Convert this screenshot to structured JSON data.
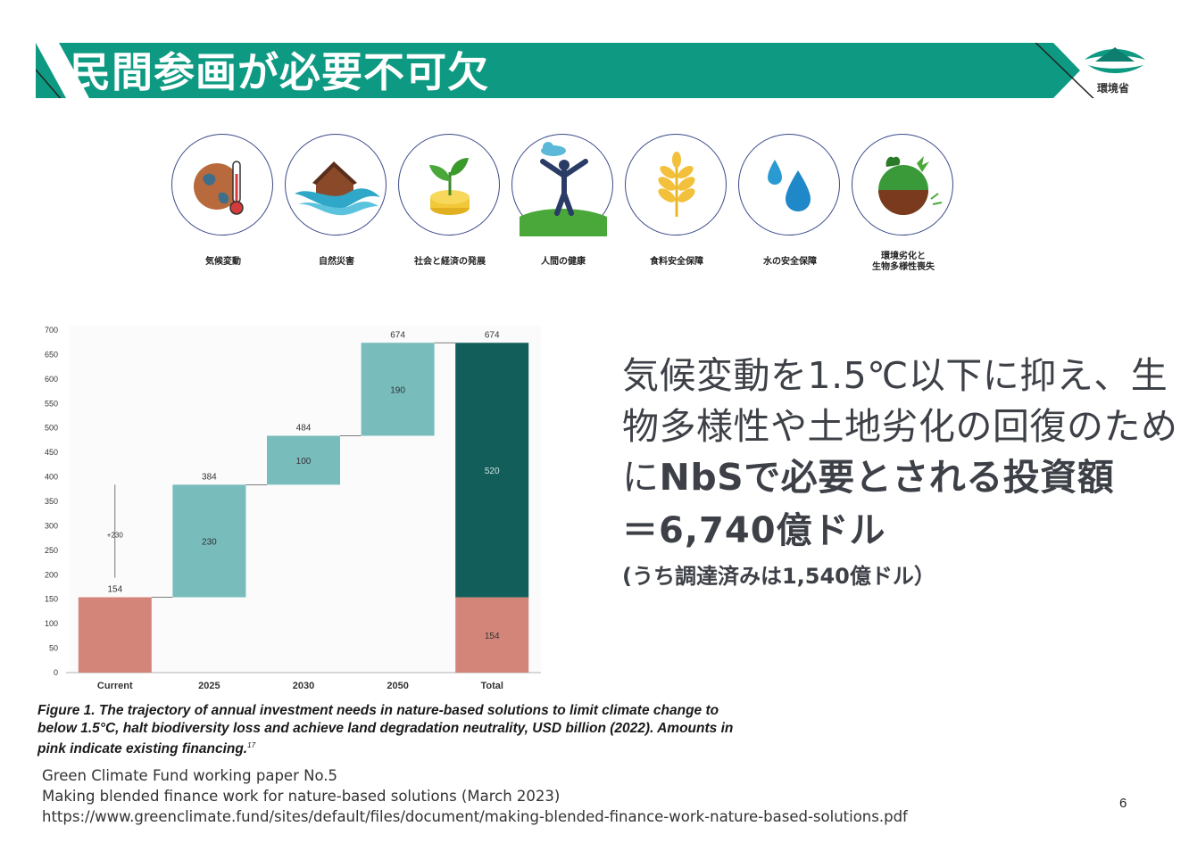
{
  "header": {
    "title": "民間参画が必要不可欠",
    "logo_label": "環境省",
    "accent": "#0e9a82"
  },
  "icons": [
    {
      "label": "気候変動",
      "icon": "globe-thermometer-icon"
    },
    {
      "label": "自然災害",
      "icon": "house-flood-icon"
    },
    {
      "label": "社会と経済の発展",
      "icon": "plant-coins-icon"
    },
    {
      "label": "人間の健康",
      "icon": "person-cloud-icon"
    },
    {
      "label": "食料安全保障",
      "icon": "wheat-icon"
    },
    {
      "label": "水の安全保障",
      "icon": "water-drops-icon"
    },
    {
      "label": "環境劣化と\n生物多様性喪失",
      "icon": "earth-soil-icon"
    }
  ],
  "chart_data": {
    "type": "bar",
    "subtype": "waterfall",
    "categories": [
      "Current",
      "2025",
      "2030",
      "2050",
      "Total"
    ],
    "steps": [
      {
        "category": "Current",
        "base": 0,
        "value": 154,
        "top_label": "154",
        "inner_label": "",
        "color": "#d4857a"
      },
      {
        "category": "2025",
        "base": 154,
        "value": 230,
        "top_label": "384",
        "inner_label": "230",
        "color": "#78bcbc"
      },
      {
        "category": "2030",
        "base": 384,
        "value": 100,
        "top_label": "484",
        "inner_label": "100",
        "color": "#78bcbc"
      },
      {
        "category": "2050",
        "base": 484,
        "value": 190,
        "top_label": "674",
        "inner_label": "190",
        "color": "#78bcbc"
      }
    ],
    "total": {
      "category": "Total",
      "existing": 154,
      "additional": 520,
      "top_label": "674",
      "existing_label": "154",
      "additional_label": "520",
      "existing_color": "#d4857a",
      "additional_color": "#125e5a"
    },
    "annotation": {
      "text": "+230",
      "from": 154,
      "to": 384
    },
    "ylim": [
      0,
      700
    ],
    "yticks": [
      0,
      50,
      100,
      150,
      200,
      250,
      300,
      350,
      400,
      450,
      500,
      550,
      600,
      650,
      700
    ],
    "caption": "Figure 1. The trajectory of annual investment needs in nature-based solutions to limit climate change to below 1.5°C, halt biodiversity loss and achieve land degradation neutrality, USD billion (2022). Amounts in pink indicate existing financing.",
    "caption_ref": "17"
  },
  "right_text": {
    "line1": "気候変動を1.5℃以下に抑え、生",
    "line2": "物多様性や土地劣化の回復のため",
    "line3_prefix": "に",
    "line3_bold": "NbSで必要とされる投資額",
    "amount": "＝6,740億ドル",
    "sub": "(うち調達済みは1,540億ドル）"
  },
  "source": {
    "line1": "Green Climate Fund working paper No.5",
    "line2": "Making blended finance work for nature-based solutions (March 2023)",
    "line3": "https://www.greenclimate.fund/sites/default/files/document/making-blended-finance-work-nature-based-solutions.pdf"
  },
  "page_number": "6"
}
